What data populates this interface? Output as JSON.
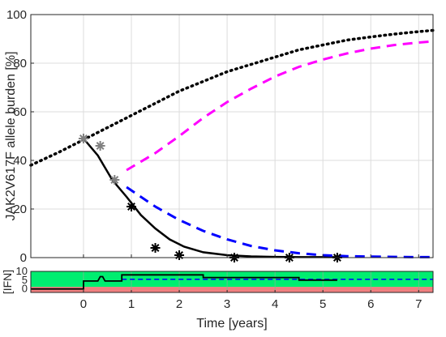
{
  "chart_data": [
    {
      "type": "line",
      "ylabel": "JAK2V617F allele burden [%]",
      "xlim": [
        -1.1,
        7.3
      ],
      "ylim": [
        0,
        100
      ],
      "x_ticks": [
        0,
        1,
        2,
        3,
        4,
        5,
        6,
        7
      ],
      "y_ticks": [
        0,
        20,
        40,
        60,
        80,
        100
      ],
      "grid": true,
      "colors": {
        "dotted": "#000000",
        "solid": "#000000",
        "magenta": "#ff00ff",
        "blue": "#0000ff",
        "markers_gray": "#808080",
        "markers_black": "#000000"
      },
      "series": [
        {
          "style": "dotted",
          "x": [
            -1.1,
            -0.5,
            0,
            0.5,
            1,
            1.5,
            2,
            2.5,
            3,
            3.5,
            4,
            4.5,
            5,
            5.5,
            6,
            6.5,
            7,
            7.3
          ],
          "y": [
            38,
            43.5,
            48.5,
            53.5,
            58.5,
            63.5,
            68.5,
            72.5,
            76.5,
            79.5,
            82.5,
            85.5,
            87.5,
            89.5,
            90.8,
            92,
            93,
            93.5
          ]
        },
        {
          "style": "solid",
          "x": [
            0,
            0.3,
            0.6,
            0.9,
            1.2,
            1.5,
            1.8,
            2.1,
            2.5,
            3,
            3.5,
            4,
            4.5,
            5,
            5.3
          ],
          "y": [
            49,
            42,
            32,
            25,
            17.5,
            12,
            7.5,
            4.5,
            2.2,
            1,
            0.5,
            0.3,
            0.2,
            0.2,
            0.2
          ]
        },
        {
          "style": "dashed-magenta",
          "x": [
            0.9,
            1.5,
            2,
            2.5,
            3,
            3.5,
            4,
            4.5,
            5,
            5.5,
            6,
            6.5,
            7,
            7.3
          ],
          "y": [
            36,
            43,
            50,
            57.5,
            64,
            69.5,
            74.5,
            78.5,
            81.5,
            84,
            86,
            87.5,
            88.5,
            89
          ]
        },
        {
          "style": "dashed-blue",
          "x": [
            0.9,
            1.5,
            2,
            2.5,
            3,
            3.5,
            4,
            4.5,
            5,
            5.5,
            6,
            6.5,
            7,
            7.3
          ],
          "y": [
            29,
            21,
            15.5,
            11,
            7.5,
            4.8,
            3,
            1.8,
            1,
            0.6,
            0.4,
            0.3,
            0.2,
            0.2
          ]
        },
        {
          "style": "markers-gray",
          "x": [
            0,
            0.35,
            0.65
          ],
          "y": [
            49,
            46,
            32
          ]
        },
        {
          "style": "markers-black",
          "x": [
            1,
            1.5,
            2,
            3.15,
            4.3,
            5.3
          ],
          "y": [
            21,
            4,
            1,
            0,
            0,
            0
          ]
        }
      ]
    },
    {
      "type": "area",
      "ylabel": "[IFN]",
      "xlabel": "Time [years]",
      "xlim": [
        -1.1,
        7.3
      ],
      "ylim": [
        -2,
        10
      ],
      "x_ticks": [
        0,
        1,
        2,
        3,
        4,
        5,
        6,
        7
      ],
      "x_tick_labels": [
        "0",
        "1",
        "2",
        "3",
        "4",
        "5",
        "6",
        "7"
      ],
      "y_ticks": [
        0,
        5,
        10
      ],
      "y_tick_labels": [
        "0",
        "5",
        "10"
      ],
      "bands": [
        {
          "from": -2,
          "to": 1.2,
          "color": "#f08080"
        },
        {
          "from": 1.2,
          "to": 10,
          "color": "#00ee70"
        }
      ],
      "dashed_level": 5.5,
      "dashed_color": "#0000ff",
      "dose_line": {
        "color": "#000000",
        "x": [
          -1.1,
          0,
          0,
          0.3,
          0.35,
          0.4,
          0.45,
          0.8,
          0.8,
          2.5,
          2.5,
          4.5,
          4.5,
          5.3
        ],
        "y": [
          0,
          0,
          4.5,
          4.5,
          7,
          7,
          4.5,
          4.5,
          8,
          8,
          6.5,
          6.5,
          5,
          5
        ]
      }
    }
  ]
}
